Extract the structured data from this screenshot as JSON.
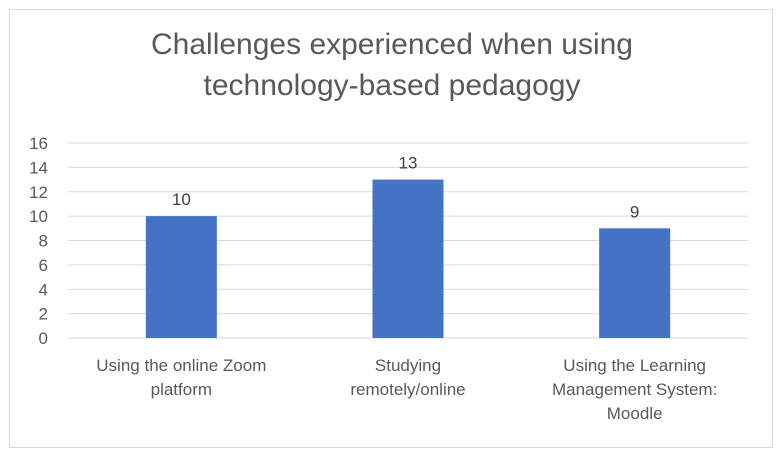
{
  "chart_data": {
    "type": "bar",
    "title_lines": [
      "Challenges experienced when using",
      "technology-based pedagogy"
    ],
    "categories": [
      "Using the online Zoom platform",
      "Studying remotely/online",
      "Using the Learning Management System: Moodle"
    ],
    "category_lines": [
      [
        "Using the online Zoom",
        "platform"
      ],
      [
        "Studying",
        "remotely/online"
      ],
      [
        "Using the Learning",
        "Management System:",
        "Moodle"
      ]
    ],
    "values": [
      10,
      13,
      9
    ],
    "ylim": [
      0,
      16
    ],
    "yticks": [
      0,
      2,
      4,
      6,
      8,
      10,
      12,
      14,
      16
    ],
    "grid": true,
    "data_labels": true,
    "bar_color": "#4472c4",
    "grid_color": "#d9d9d9",
    "text_color": "#595959"
  }
}
